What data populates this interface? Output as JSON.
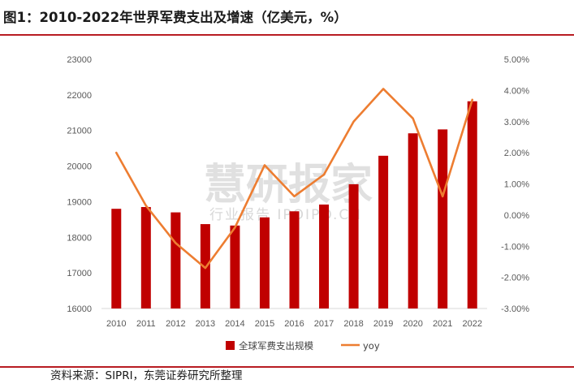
{
  "figure": {
    "title": "图1：2010-2022年世界军费支出及增速（亿美元，%）",
    "source": "资料来源：SIPRI，东莞证券研究所整理",
    "watermark_main": "慧研报家",
    "watermark_sub": "行业报告 IPOIPO.CN"
  },
  "colors": {
    "bar": "#c00000",
    "line": "#ed7d31",
    "rule": "#b81c22"
  },
  "chart_data": {
    "type": "bar",
    "categories": [
      "2010",
      "2011",
      "2012",
      "2013",
      "2014",
      "2015",
      "2016",
      "2017",
      "2018",
      "2019",
      "2020",
      "2021",
      "2022"
    ],
    "series": [
      {
        "name": "全球军费支出规模",
        "type": "bar",
        "axis": "left",
        "values": [
          18800,
          18850,
          18700,
          18370,
          18330,
          18560,
          18730,
          18920,
          19490,
          20290,
          20920,
          21030,
          21820
        ]
      },
      {
        "name": "yoy",
        "type": "line",
        "axis": "right",
        "values": [
          2.0,
          0.3,
          -0.9,
          -1.7,
          -0.4,
          1.6,
          0.6,
          1.3,
          3.0,
          4.05,
          3.1,
          0.6,
          3.7
        ]
      }
    ],
    "y_left": {
      "ylim": [
        16000,
        23000
      ],
      "ticks": [
        "16000",
        "17000",
        "18000",
        "19000",
        "20000",
        "21000",
        "22000",
        "23000"
      ]
    },
    "y_right": {
      "ylim": [
        -3,
        5
      ],
      "ticks": [
        "-3.00%",
        "-2.00%",
        "-1.00%",
        "0.00%",
        "1.00%",
        "2.00%",
        "3.00%",
        "4.00%",
        "5.00%"
      ]
    },
    "legend_position": "bottom",
    "grid": false
  }
}
